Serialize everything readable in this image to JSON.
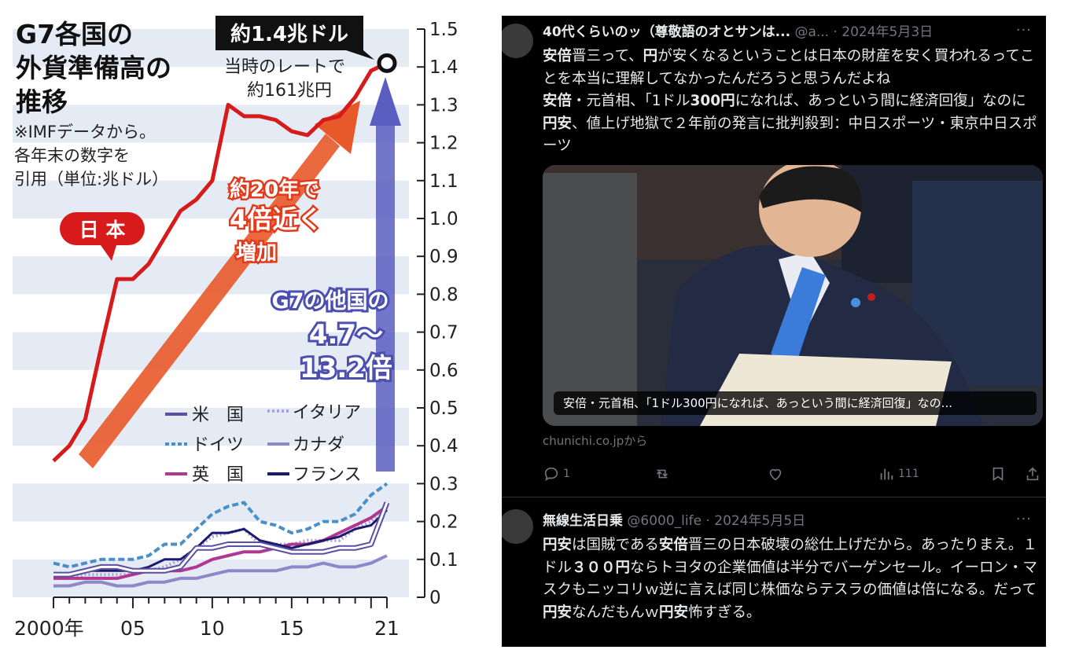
{
  "chart": {
    "title_lines": [
      "G7各国の",
      "外貨準備高の",
      "推移"
    ],
    "note_lines": [
      "※IMFデータから。",
      "各年末の数字を",
      "引用（単位:兆ドル）"
    ],
    "callout_value": "約1.4兆ドル",
    "callout_sub_lines": [
      "当時のレートで",
      "約161兆円"
    ],
    "japan_label": "日 本",
    "growth_lines": [
      "約20年で",
      "4倍近く",
      "増加"
    ],
    "others_lines": [
      "G7の他国の",
      "4.7～",
      "13.2倍"
    ],
    "legend": [
      "米　国",
      "イタリア",
      "ドイツ",
      "カナダ",
      "英　国",
      "フランス"
    ],
    "y_ticks": [
      "0",
      "0.1",
      "0.2",
      "0.3",
      "0.4",
      "0.5",
      "0.6",
      "0.7",
      "0.8",
      "0.9",
      "1.0",
      "1.1",
      "1.2",
      "1.3",
      "1.4",
      "1.5"
    ],
    "x_ticks": [
      "2000年",
      "05",
      "10",
      "15",
      "21"
    ],
    "colors": {
      "japan": "#d71a1a",
      "usa": "#5a4fa0",
      "italy": "#a9a2d6",
      "germany": "#4a8fc8",
      "canada": "#8f88c8",
      "uk": "#b03890",
      "france": "#1c1a6e",
      "blue_arrow": "#5a5ec0",
      "orange_arrow": "#e8592a"
    }
  },
  "chart_data": {
    "type": "line",
    "title": "G7各国の外貨準備高の推移",
    "ylabel": "",
    "unit": "兆ドル",
    "ylim": [
      0,
      1.5
    ],
    "x": [
      2000,
      2001,
      2002,
      2003,
      2004,
      2005,
      2006,
      2007,
      2008,
      2009,
      2010,
      2011,
      2012,
      2013,
      2014,
      2015,
      2016,
      2017,
      2018,
      2019,
      2020,
      2021
    ],
    "series": [
      {
        "name": "日本",
        "values": [
          0.36,
          0.4,
          0.47,
          0.66,
          0.84,
          0.84,
          0.88,
          0.95,
          1.02,
          1.05,
          1.1,
          1.3,
          1.27,
          1.27,
          1.26,
          1.23,
          1.22,
          1.26,
          1.27,
          1.32,
          1.39,
          1.41
        ]
      },
      {
        "name": "米　国",
        "values": [
          0.06,
          0.06,
          0.07,
          0.08,
          0.08,
          0.07,
          0.07,
          0.07,
          0.08,
          0.13,
          0.13,
          0.14,
          0.14,
          0.14,
          0.13,
          0.12,
          0.12,
          0.12,
          0.13,
          0.13,
          0.14,
          0.25
        ]
      },
      {
        "name": "イタリア",
        "values": [
          0.05,
          0.05,
          0.06,
          0.06,
          0.06,
          0.06,
          0.07,
          0.08,
          0.1,
          0.13,
          0.16,
          0.17,
          0.18,
          0.14,
          0.14,
          0.14,
          0.15,
          0.15,
          0.15,
          0.18,
          0.2,
          0.24
        ]
      },
      {
        "name": "ドイツ",
        "values": [
          0.09,
          0.08,
          0.09,
          0.1,
          0.1,
          0.1,
          0.11,
          0.14,
          0.14,
          0.18,
          0.22,
          0.24,
          0.25,
          0.2,
          0.19,
          0.17,
          0.18,
          0.2,
          0.2,
          0.22,
          0.27,
          0.3
        ]
      },
      {
        "name": "カナダ",
        "values": [
          0.03,
          0.03,
          0.04,
          0.04,
          0.03,
          0.03,
          0.04,
          0.04,
          0.05,
          0.05,
          0.06,
          0.07,
          0.07,
          0.07,
          0.07,
          0.08,
          0.08,
          0.09,
          0.08,
          0.08,
          0.09,
          0.11
        ]
      },
      {
        "name": "英　国",
        "values": [
          0.05,
          0.05,
          0.05,
          0.05,
          0.05,
          0.06,
          0.07,
          0.07,
          0.07,
          0.08,
          0.1,
          0.11,
          0.12,
          0.12,
          0.13,
          0.14,
          0.14,
          0.15,
          0.17,
          0.19,
          0.21,
          0.24
        ]
      },
      {
        "name": "フランス",
        "values": [
          0.06,
          0.06,
          0.07,
          0.07,
          0.07,
          0.07,
          0.08,
          0.1,
          0.1,
          0.13,
          0.17,
          0.17,
          0.18,
          0.15,
          0.14,
          0.13,
          0.14,
          0.15,
          0.16,
          0.18,
          0.19,
          0.23
        ]
      }
    ],
    "x_tick_labels": [
      "2000年",
      "05",
      "10",
      "15",
      "21"
    ],
    "y_ticks": [
      0,
      0.1,
      0.2,
      0.3,
      0.4,
      0.5,
      0.6,
      0.7,
      0.8,
      0.9,
      1.0,
      1.1,
      1.2,
      1.3,
      1.4,
      1.5
    ],
    "annotations": [
      "約1.4兆ドル",
      "当時のレートで約161兆円",
      "約20年で4倍近く増加",
      "G7の他国の4.7～13.2倍"
    ],
    "legend_placement": "bottom-center",
    "grid": "horizontal bands"
  },
  "tweets": [
    {
      "name": "40代くらいのッ（尊敬語のオとサンは...",
      "handle": "@a...",
      "date": "· 2024年5月3日",
      "more": "···",
      "body_segments": [
        {
          "t": "安倍",
          "b": true
        },
        {
          "t": "晋三って、",
          "b": false
        },
        {
          "t": "円",
          "b": true
        },
        {
          "t": "が安くなるということは日本の財産を安く買われるってことを本当に理解してなかったんだろうと思うんだよね",
          "b": false
        },
        {
          "br": true
        },
        {
          "t": "安倍",
          "b": true
        },
        {
          "t": "・元首相、「1ドル",
          "b": false
        },
        {
          "t": "300円",
          "b": true
        },
        {
          "t": "になれば、あっという間に経済回復」なのに",
          "b": false
        },
        {
          "t": "円安",
          "b": true
        },
        {
          "t": "、値上げ地獄で２年前の発言に批判殺到：中日スポーツ・東京中日スポーツ",
          "b": false
        }
      ],
      "card_caption": "安倍・元首相、「1ドル300円になれば、あっという間に経済回復」なの...",
      "card_source": "chunichi.co.jpから",
      "replies": "1",
      "views": "111"
    },
    {
      "name": "無線生活日乗",
      "handle": "@6000_life",
      "date": "· 2024年5月5日",
      "more": "···",
      "body_segments": [
        {
          "t": "円安",
          "b": true
        },
        {
          "t": "は国賊である",
          "b": false
        },
        {
          "t": "安倍",
          "b": true
        },
        {
          "t": "晋三の日本破壊の総仕上げだから。あったりまえ。１ドル",
          "b": false
        },
        {
          "t": "３００円",
          "b": true
        },
        {
          "t": "ならトヨタの企業価値は半分でバーゲンセール。イーロン・マスクもニッコリｗ逆に言えば同じ株価ならテスラの価値は倍になる。だって",
          "b": false
        },
        {
          "t": "円安",
          "b": true
        },
        {
          "t": "なんだもんｗ",
          "b": false
        },
        {
          "t": "円安",
          "b": true
        },
        {
          "t": "怖すぎる。",
          "b": false
        }
      ]
    }
  ]
}
